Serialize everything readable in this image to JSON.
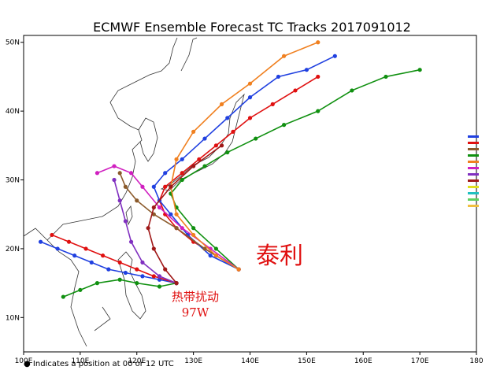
{
  "chart_data": {
    "type": "map",
    "title": "ECMWF Ensemble Forecast TC Tracks 2017091012",
    "xlim": [
      100,
      180
    ],
    "ylim": [
      5,
      51
    ],
    "xticks": [
      {
        "value": 100,
        "label": "100E"
      },
      {
        "value": 110,
        "label": "110E"
      },
      {
        "value": 120,
        "label": "120E"
      },
      {
        "value": 130,
        "label": "130E"
      },
      {
        "value": 140,
        "label": "140E"
      },
      {
        "value": 150,
        "label": "150E"
      },
      {
        "value": 160,
        "label": "160E"
      },
      {
        "value": 170,
        "label": "170E"
      },
      180
    ],
    "yticks": [
      {
        "value": 10,
        "label": "10N"
      },
      {
        "value": 20,
        "label": "20N"
      },
      {
        "value": 30,
        "label": "30N"
      },
      {
        "value": 40,
        "label": "40N"
      },
      {
        "value": 50,
        "label": "50N"
      }
    ],
    "annotations": [
      "泰利",
      "热带扰动",
      "97W"
    ],
    "footnote": "● Indicates a position at 00 or 12 UTC",
    "tracks": [
      {
        "color": "#e01010",
        "x": [
          138,
          134,
          130,
          127,
          125,
          124,
          125,
          128,
          131,
          134,
          137,
          140,
          144,
          148,
          152
        ],
        "y": [
          17,
          19,
          21,
          23,
          25,
          27,
          29,
          31,
          33,
          35,
          37,
          39,
          41,
          43,
          45
        ]
      },
      {
        "color": "#2040e0",
        "x": [
          138,
          133,
          129,
          126,
          124,
          123,
          125,
          128,
          132,
          136,
          140,
          145,
          150,
          155
        ],
        "y": [
          17,
          19,
          22,
          25,
          27,
          29,
          31,
          33,
          36,
          39,
          42,
          45,
          46,
          48
        ]
      },
      {
        "color": "#109010",
        "x": [
          138,
          134,
          130,
          127,
          126,
          128,
          132,
          136,
          141,
          146,
          152,
          158,
          164,
          170
        ],
        "y": [
          17,
          20,
          23,
          26,
          28,
          30,
          32,
          34,
          36,
          38,
          40,
          43,
          45,
          46
        ]
      },
      {
        "color": "#8b5a2b",
        "x": [
          138,
          132,
          127,
          123,
          120,
          118,
          117
        ],
        "y": [
          17,
          20,
          23,
          25,
          27,
          29,
          31
        ]
      },
      {
        "color": "#d020c0",
        "x": [
          138,
          133,
          128,
          124,
          121,
          119,
          116,
          113
        ],
        "y": [
          17,
          20,
          23,
          26,
          29,
          31,
          32,
          31
        ]
      },
      {
        "color": "#f08020",
        "x": [
          138,
          134,
          130,
          127,
          126,
          127,
          130,
          135,
          140,
          146,
          152
        ],
        "y": [
          17,
          19,
          22,
          25,
          29,
          33,
          37,
          41,
          44,
          48,
          50
        ]
      },
      {
        "color": "#2040e0",
        "x": [
          127,
          124,
          121,
          118,
          115,
          112,
          109,
          106,
          103
        ],
        "y": [
          15,
          15.5,
          16,
          16.5,
          17,
          18,
          19,
          20,
          21
        ]
      },
      {
        "color": "#e01010",
        "x": [
          127,
          123,
          120,
          117,
          114,
          111,
          108,
          105
        ],
        "y": [
          15,
          16,
          17,
          18,
          19,
          20,
          21,
          22
        ]
      },
      {
        "color": "#109010",
        "x": [
          127,
          124,
          120,
          117,
          113,
          110,
          107
        ],
        "y": [
          15,
          14.5,
          15,
          15.5,
          15,
          14,
          13
        ]
      },
      {
        "color": "#8030c0",
        "x": [
          127,
          124,
          121,
          119,
          118,
          117,
          116
        ],
        "y": [
          15,
          16,
          18,
          21,
          24,
          27,
          30
        ]
      },
      {
        "color": "#a01818",
        "x": [
          127,
          125,
          123,
          122,
          123,
          126,
          130,
          135
        ],
        "y": [
          15,
          17,
          20,
          23,
          26,
          29,
          32,
          35
        ]
      }
    ]
  }
}
